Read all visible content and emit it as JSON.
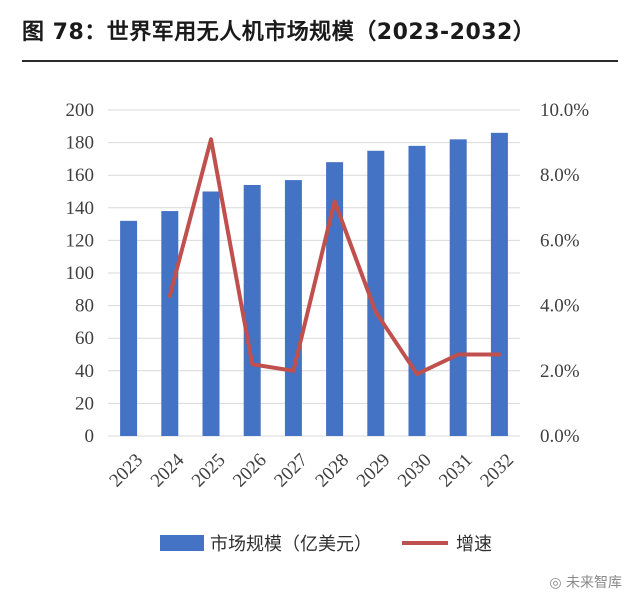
{
  "title": "图 78：世界军用无人机市场规模（2023-2032）",
  "watermark": "未来智库",
  "chart_data": {
    "type": "bar+line",
    "categories": [
      "2023",
      "2024",
      "2025",
      "2026",
      "2027",
      "2028",
      "2029",
      "2030",
      "2031",
      "2032"
    ],
    "series": [
      {
        "name": "市场规模（亿美元）",
        "type": "bar",
        "axis": "left",
        "color": "#4472C4",
        "values": [
          132,
          138,
          150,
          154,
          157,
          168,
          175,
          178,
          182,
          186
        ]
      },
      {
        "name": "增速",
        "type": "line",
        "axis": "right",
        "color": "#C0504D",
        "values": [
          null,
          4.3,
          9.1,
          2.2,
          2.0,
          7.2,
          3.8,
          1.9,
          2.5,
          2.5
        ]
      }
    ],
    "y_left": {
      "min": 0,
      "max": 200,
      "step": 20,
      "ticks": [
        "0",
        "20",
        "40",
        "60",
        "80",
        "100",
        "120",
        "140",
        "160",
        "180",
        "200"
      ]
    },
    "y_right": {
      "min": 0,
      "max": 10,
      "step": 2,
      "ticks": [
        "0.0%",
        "2.0%",
        "4.0%",
        "6.0%",
        "8.0%",
        "10.0%"
      ]
    },
    "grid": true,
    "legend_position": "bottom"
  }
}
